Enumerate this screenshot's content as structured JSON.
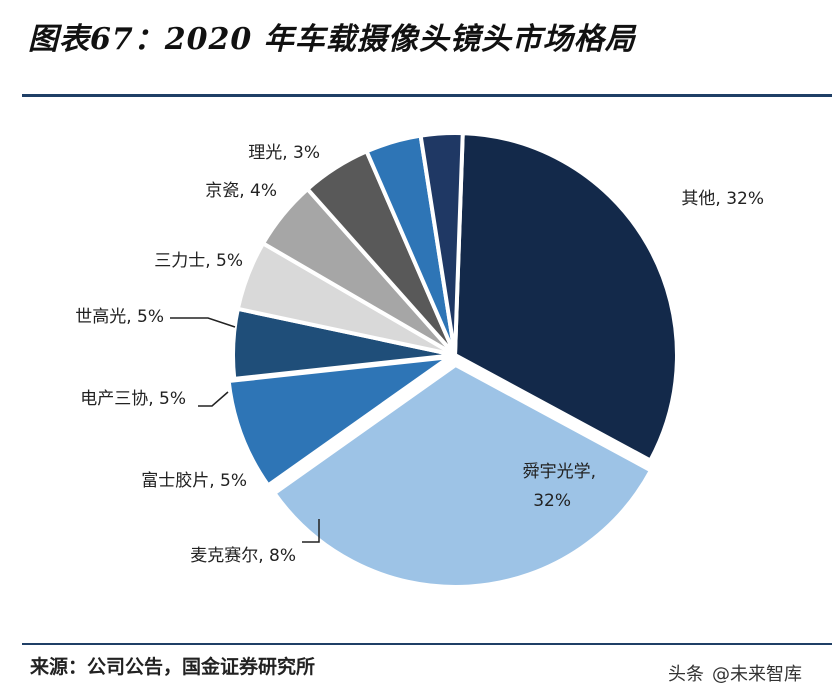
{
  "chart_data": {
    "type": "pie",
    "title": "图表67：2020 年车载摄像头镜头市场格局",
    "unit": "%",
    "slices": [
      {
        "name": "其他",
        "value": 32,
        "label": "其他, 32%",
        "color": "#13294a"
      },
      {
        "name": "舜宇光学",
        "value": 32,
        "label_line1": "舜宇光学,",
        "label_line2": "32%",
        "color": "#9dc3e6"
      },
      {
        "name": "麦克赛尔",
        "value": 8,
        "label": "麦克赛尔, 8%",
        "color": "#2e75b6"
      },
      {
        "name": "富士胶片",
        "value": 5,
        "label": "富士胶片, 5%",
        "color": "#1f4e79"
      },
      {
        "name": "电产三协",
        "value": 5,
        "label": "电产三协, 5%",
        "color": "#d9d9d9"
      },
      {
        "name": "世高光",
        "value": 5,
        "label": "世高光, 5%",
        "color": "#a6a6a6"
      },
      {
        "name": "三力士",
        "value": 5,
        "label": "三力士, 5%",
        "color": "#595959"
      },
      {
        "name": "京瓷",
        "value": 4,
        "label": "京瓷, 4%",
        "color": "#2e75b6"
      },
      {
        "name": "理光",
        "value": 3,
        "label": "理光, 3%",
        "color": "#1f3864"
      }
    ]
  },
  "source": "来源：公司公告，国金证券研究所",
  "watermark": {
    "platform": "头条",
    "account": "@未来智库"
  }
}
